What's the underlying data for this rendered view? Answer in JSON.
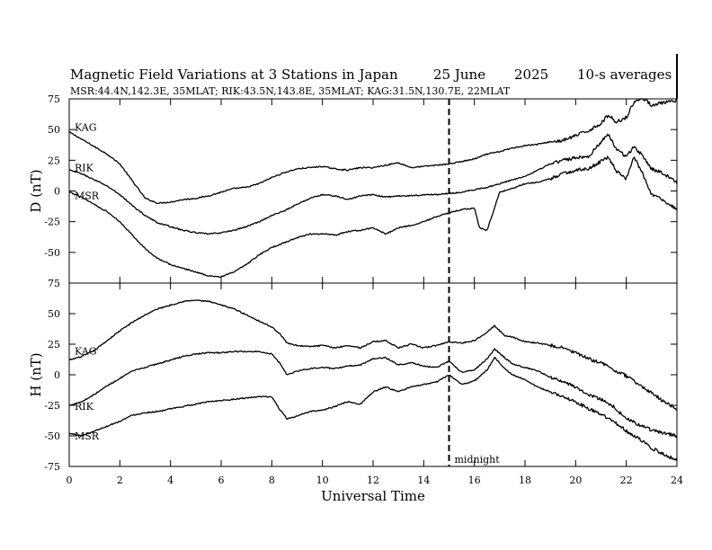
{
  "header": {
    "title": "Magnetic Field Variations at 3 Stations in Japan",
    "date": "25 June",
    "year": "2025",
    "averaging": "10-s averages",
    "subtitle": "MSR:44.4N,142.3E, 35MLAT;  RIK:43.5N,143.8E, 35MLAT;  KAG:31.5N,130.7E, 22MLAT"
  },
  "colors": {
    "trace": "#000000",
    "axes": "#000000",
    "background": "#ffffff"
  },
  "chart_data": {
    "type": "line",
    "xlabel": "Universal Time",
    "xlim": [
      0,
      24
    ],
    "xticks": [
      0,
      2,
      4,
      6,
      8,
      10,
      12,
      14,
      16,
      18,
      20,
      22,
      24
    ],
    "annotation": {
      "x": 15,
      "label": "midnight",
      "style": "dashed"
    },
    "panels": [
      {
        "id": "D",
        "ylabel": "D (nT)",
        "ylim": [
          -75,
          75
        ],
        "yticks": [
          -75,
          -50,
          -25,
          0,
          25,
          50,
          75
        ],
        "series": [
          {
            "name": "KAG",
            "x": [
              0,
              0.5,
              1,
              1.5,
              2,
              2.5,
              3,
              3.5,
              4,
              4.5,
              5,
              5.5,
              6,
              6.5,
              7,
              7.5,
              8,
              8.5,
              9,
              9.5,
              10,
              10.5,
              11,
              11.5,
              12,
              12.5,
              13,
              13.5,
              14,
              14.5,
              15,
              15.5,
              16,
              16.5,
              17,
              17.5,
              18,
              18.5,
              19,
              19.5,
              20,
              20.5,
              21,
              21.3,
              21.6,
              22,
              22.3,
              22.6,
              23,
              23.5,
              24
            ],
            "y": [
              48,
              42,
              36,
              30,
              22,
              8,
              -6,
              -10,
              -9,
              -7,
              -6,
              -4,
              -1,
              2,
              3,
              6,
              11,
              15,
              18,
              19,
              20,
              18,
              17,
              19,
              19,
              21,
              23,
              19,
              20,
              21,
              22,
              24,
              26,
              30,
              32,
              35,
              37,
              38,
              40,
              41,
              45,
              49,
              55,
              62,
              56,
              60,
              72,
              76,
              70,
              72,
              73
            ]
          },
          {
            "name": "RIK",
            "x": [
              0,
              0.5,
              1,
              1.5,
              2,
              2.5,
              3,
              3.5,
              4,
              4.5,
              5,
              5.5,
              6,
              6.5,
              7,
              7.5,
              8,
              8.5,
              9,
              9.5,
              10,
              10.5,
              11,
              11.5,
              12,
              12.5,
              13,
              13.5,
              14,
              14.5,
              15,
              15.5,
              16,
              16.5,
              17,
              17.5,
              18,
              18.5,
              19,
              19.5,
              20,
              20.5,
              21,
              21.3,
              21.6,
              22,
              22.3,
              22.6,
              23,
              23.5,
              24
            ],
            "y": [
              17,
              14,
              9,
              4,
              -3,
              -12,
              -20,
              -26,
              -29,
              -32,
              -34,
              -35,
              -34,
              -32,
              -29,
              -25,
              -20,
              -16,
              -11,
              -6,
              -3,
              -4,
              -7,
              -4,
              -3,
              -5,
              -4,
              -4,
              -3,
              -3,
              -2,
              -1,
              1,
              3,
              6,
              9,
              12,
              17,
              22,
              25,
              27,
              28,
              40,
              46,
              34,
              28,
              36,
              30,
              18,
              14,
              7
            ]
          },
          {
            "name": "MSR",
            "x": [
              0,
              0.5,
              1,
              1.5,
              2,
              2.5,
              3,
              3.5,
              4,
              4.5,
              5,
              5.5,
              6,
              6.5,
              7,
              7.5,
              8,
              8.5,
              9,
              9.5,
              10,
              10.5,
              11,
              11.5,
              12,
              12.5,
              13,
              13.5,
              14,
              14.5,
              15,
              15.5,
              16,
              16.2,
              16.5,
              17,
              17.5,
              18,
              18.5,
              19,
              19.5,
              20,
              20.5,
              21,
              21.3,
              21.6,
              22,
              22.3,
              22.6,
              23,
              23.5,
              24
            ],
            "y": [
              -1,
              -5,
              -11,
              -17,
              -25,
              -36,
              -47,
              -55,
              -60,
              -63,
              -66,
              -69,
              -70,
              -66,
              -60,
              -52,
              -46,
              -42,
              -38,
              -35,
              -35,
              -36,
              -33,
              -32,
              -30,
              -35,
              -30,
              -28,
              -25,
              -21,
              -18,
              -15,
              -14,
              -30,
              -32,
              -1,
              2,
              6,
              7,
              10,
              14,
              17,
              18,
              24,
              28,
              16,
              10,
              28,
              16,
              -3,
              -8,
              -15
            ]
          }
        ]
      },
      {
        "id": "H",
        "ylabel": "H (nT)",
        "ylim": [
          -75,
          75
        ],
        "yticks": [
          -75,
          -50,
          -25,
          0,
          25,
          50,
          75
        ],
        "series": [
          {
            "name": "KAG",
            "x": [
              0,
              0.5,
              1,
              1.5,
              2,
              2.5,
              3,
              3.5,
              4,
              4.5,
              5,
              5.5,
              6,
              6.5,
              7,
              7.5,
              8,
              8.3,
              8.6,
              9,
              9.5,
              10,
              10.5,
              11,
              11.5,
              12,
              12.5,
              13,
              13.5,
              14,
              14.5,
              15,
              15.5,
              16,
              16.5,
              16.8,
              17.2,
              17.5,
              18,
              18.5,
              19,
              19.5,
              20,
              20.5,
              21,
              21.5,
              22,
              22.5,
              23,
              23.5,
              24
            ],
            "y": [
              12,
              15,
              20,
              28,
              36,
              43,
              49,
              54,
              57,
              60,
              61,
              60,
              57,
              54,
              49,
              44,
              39,
              34,
              26,
              24,
              23,
              24,
              22,
              24,
              22,
              27,
              28,
              22,
              25,
              22,
              24,
              27,
              26,
              28,
              35,
              40,
              32,
              31,
              27,
              26,
              24,
              22,
              18,
              13,
              10,
              4,
              -1,
              -8,
              -15,
              -22,
              -28
            ]
          },
          {
            "name": "RIK",
            "x": [
              0,
              0.5,
              1,
              1.5,
              2,
              2.5,
              3,
              3.5,
              4,
              4.5,
              5,
              5.5,
              6,
              6.5,
              7,
              7.5,
              8,
              8.3,
              8.6,
              9,
              9.5,
              10,
              10.5,
              11,
              11.5,
              12,
              12.5,
              13,
              13.5,
              14,
              14.5,
              15,
              15.5,
              16,
              16.5,
              16.8,
              17.2,
              17.5,
              18,
              18.5,
              19,
              19.5,
              20,
              20.5,
              21,
              21.5,
              22,
              22.5,
              23,
              23.5,
              24
            ],
            "y": [
              -25,
              -22,
              -16,
              -9,
              -3,
              3,
              6,
              9,
              12,
              15,
              17,
              18,
              18,
              19,
              19,
              19,
              17,
              10,
              0,
              3,
              5,
              6,
              5,
              7,
              8,
              13,
              14,
              8,
              10,
              7,
              6,
              11,
              2,
              4,
              13,
              21,
              14,
              9,
              6,
              3,
              -2,
              -6,
              -10,
              -16,
              -20,
              -26,
              -36,
              -41,
              -45,
              -48,
              -50
            ]
          },
          {
            "name": "MSR",
            "x": [
              0,
              0.5,
              1,
              1.5,
              2,
              2.5,
              3,
              3.5,
              4,
              4.5,
              5,
              5.5,
              6,
              6.5,
              7,
              7.5,
              8,
              8.3,
              8.6,
              9,
              9.5,
              10,
              10.5,
              11,
              11.5,
              12,
              12.5,
              13,
              13.5,
              14,
              14.5,
              15,
              15.5,
              16,
              16.5,
              16.8,
              17.2,
              17.5,
              18,
              18.5,
              19,
              19.5,
              20,
              20.5,
              21,
              21.5,
              22,
              22.5,
              23,
              23.5,
              24
            ],
            "y": [
              -48,
              -50,
              -46,
              -42,
              -38,
              -33,
              -31,
              -30,
              -28,
              -26,
              -24,
              -22,
              -21,
              -20,
              -19,
              -18,
              -18,
              -28,
              -36,
              -34,
              -30,
              -29,
              -26,
              -22,
              -24,
              -14,
              -10,
              -14,
              -10,
              -8,
              -6,
              0,
              -8,
              -5,
              4,
              14,
              5,
              0,
              -4,
              -10,
              -14,
              -18,
              -22,
              -28,
              -32,
              -38,
              -46,
              -52,
              -60,
              -65,
              -70
            ]
          }
        ]
      }
    ]
  }
}
